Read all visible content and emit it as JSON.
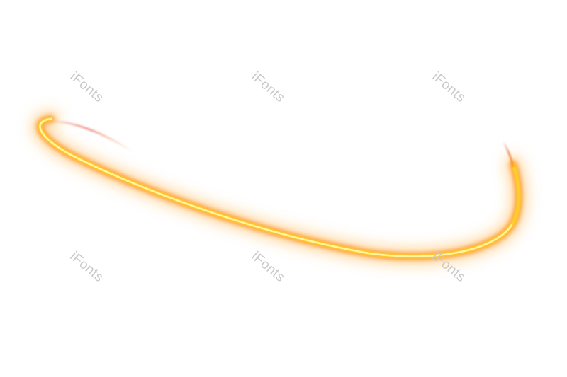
{
  "watermarks": [
    {
      "text": "iFonts"
    },
    {
      "text": "iFonts"
    },
    {
      "text": "iFonts"
    },
    {
      "text": "iFonts"
    },
    {
      "text": "iFonts"
    },
    {
      "text": "iFonts"
    }
  ],
  "colors": {
    "background": "#ffffff",
    "streak_core": "#fff7a0",
    "streak_mid": "#ffcf2a",
    "streak_outer": "#ff8a1c",
    "streak_edge": "#e0503a",
    "watermark": "#c9c9c9"
  }
}
